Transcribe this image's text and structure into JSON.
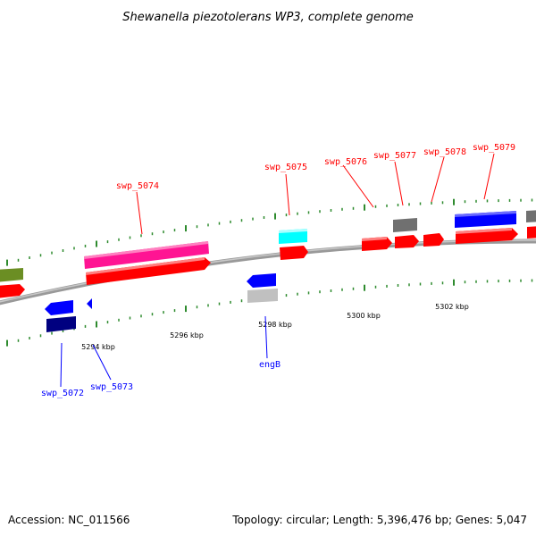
{
  "title": "Shewanella piezotolerans WP3, complete genome",
  "accession_text": "Accession: NC_011566",
  "topology_text": "Topology: circular; Length: 5,396,476 bp; Genes: 5,047",
  "colors": {
    "red": "#ff0000",
    "blue": "#0000ff",
    "navy": "#000080",
    "pink": "#ff1493",
    "cyan": "#00ffff",
    "olive": "#6b8e23",
    "gray": "#707070",
    "silver": "#c0c0c0",
    "tick_green": "#2e8b2e",
    "backbone": "#888888"
  },
  "scale_ticks": [
    {
      "label": "5294 kbp"
    },
    {
      "label": "5296 kbp"
    },
    {
      "label": "5298 kbp"
    },
    {
      "label": "5300 kbp"
    },
    {
      "label": "5302 kbp"
    }
  ],
  "gene_labels": [
    {
      "name": "swp_5072",
      "color": "blue"
    },
    {
      "name": "swp_5073",
      "color": "blue"
    },
    {
      "name": "engB",
      "color": "blue"
    },
    {
      "name": "swp_5074",
      "color": "red"
    },
    {
      "name": "swp_5075",
      "color": "red"
    },
    {
      "name": "swp_5076",
      "color": "red"
    },
    {
      "name": "swp_5077",
      "color": "red"
    },
    {
      "name": "swp_5078",
      "color": "red"
    },
    {
      "name": "swp_5079",
      "color": "red"
    }
  ]
}
